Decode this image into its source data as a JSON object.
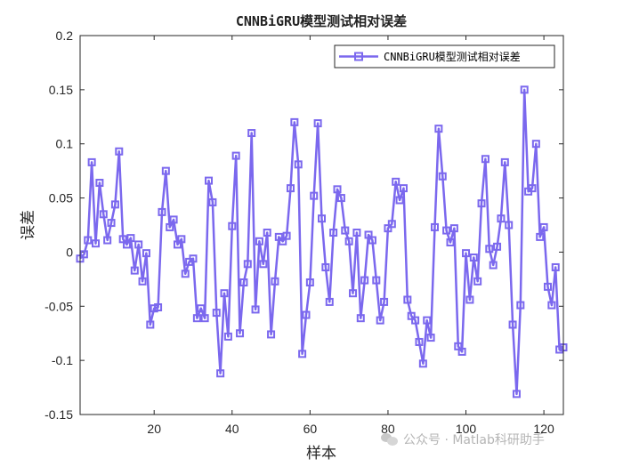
{
  "chart_data": {
    "type": "line",
    "title": "CNNBiGRU模型测试相对误差",
    "xlabel": "样本",
    "ylabel": "误差",
    "xlim": [
      1,
      125
    ],
    "ylim": [
      -0.15,
      0.2
    ],
    "xticks": [
      20,
      40,
      60,
      80,
      100,
      120
    ],
    "yticks": [
      -0.15,
      -0.1,
      -0.05,
      0,
      0.05,
      0.1,
      0.15,
      0.2
    ],
    "grid": false,
    "legend_position": "top-right",
    "marker": "square",
    "series": [
      {
        "name": "CNNBiGRU模型测试相对误差",
        "color": "#7b68ee",
        "x": [
          1,
          2,
          3,
          4,
          5,
          6,
          7,
          8,
          9,
          10,
          11,
          12,
          13,
          14,
          15,
          16,
          17,
          18,
          19,
          20,
          21,
          22,
          23,
          24,
          25,
          26,
          27,
          28,
          29,
          30,
          31,
          32,
          33,
          34,
          35,
          36,
          37,
          38,
          39,
          40,
          41,
          42,
          43,
          44,
          45,
          46,
          47,
          48,
          49,
          50,
          51,
          52,
          53,
          54,
          55,
          56,
          57,
          58,
          59,
          60,
          61,
          62,
          63,
          64,
          65,
          66,
          67,
          68,
          69,
          70,
          71,
          72,
          73,
          74,
          75,
          76,
          77,
          78,
          79,
          80,
          81,
          82,
          83,
          84,
          85,
          86,
          87,
          88,
          89,
          90,
          91,
          92,
          93,
          94,
          95,
          96,
          97,
          98,
          99,
          100,
          101,
          102,
          103,
          104,
          105,
          106,
          107,
          108,
          109,
          110,
          111,
          112,
          113,
          114,
          115,
          116,
          117,
          118,
          119,
          120,
          121,
          122,
          123,
          124,
          125
        ],
        "values": [
          -0.006,
          -0.002,
          0.011,
          0.083,
          0.008,
          0.064,
          0.035,
          0.011,
          0.027,
          0.044,
          0.093,
          0.012,
          0.007,
          0.013,
          -0.017,
          0.007,
          -0.027,
          -0.001,
          -0.067,
          -0.052,
          -0.051,
          0.037,
          0.075,
          0.023,
          0.03,
          0.007,
          0.012,
          -0.02,
          -0.009,
          -0.006,
          -0.061,
          -0.052,
          -0.061,
          0.066,
          0.046,
          -0.056,
          -0.112,
          -0.038,
          -0.078,
          0.024,
          0.089,
          -0.075,
          -0.028,
          -0.011,
          0.11,
          -0.053,
          0.01,
          -0.011,
          0.018,
          -0.076,
          -0.027,
          0.014,
          0.01,
          0.015,
          0.059,
          0.12,
          0.081,
          -0.094,
          -0.058,
          -0.028,
          0.052,
          0.119,
          0.031,
          -0.014,
          -0.046,
          0.018,
          0.058,
          0.05,
          0.02,
          0.01,
          -0.038,
          0.018,
          -0.061,
          -0.026,
          0.016,
          0.011,
          -0.026,
          -0.063,
          -0.046,
          0.022,
          0.026,
          0.065,
          0.048,
          0.059,
          -0.044,
          -0.059,
          -0.063,
          -0.083,
          -0.103,
          -0.063,
          -0.079,
          0.023,
          0.114,
          0.07,
          0.02,
          0.009,
          0.022,
          -0.087,
          -0.092,
          -0.001,
          -0.044,
          -0.005,
          -0.027,
          0.045,
          0.086,
          0.003,
          -0.012,
          0.005,
          0.031,
          0.083,
          0.025,
          -0.067,
          -0.131,
          -0.049,
          0.15,
          0.056,
          0.059,
          0.1,
          0.014,
          0.023,
          -0.032,
          -0.049,
          -0.014,
          -0.09,
          -0.088
        ]
      }
    ]
  },
  "watermark": {
    "text": "公众号 · Matlab科研助手",
    "icon": "wechat-icon"
  }
}
